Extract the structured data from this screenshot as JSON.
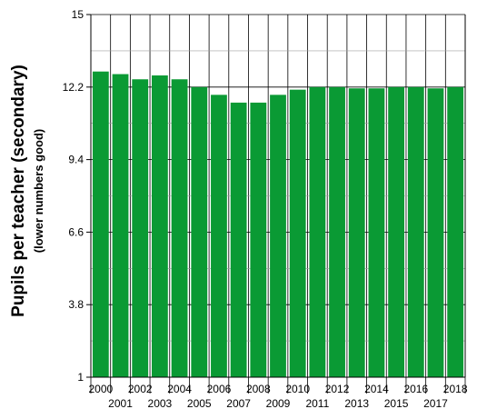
{
  "chart_data": {
    "type": "bar",
    "ylabel": "Pupils per teacher (secondary)",
    "ylabel_sub": "(lower numbers good)",
    "ylim": [
      1,
      15
    ],
    "yticks": [
      "1",
      "3.8",
      "6.6",
      "9.4",
      "12.2",
      "15"
    ],
    "grid": true,
    "bar_color": "#0a9a34",
    "categories": [
      "2000",
      "2001",
      "2002",
      "2003",
      "2004",
      "2005",
      "2006",
      "2007",
      "2008",
      "2009",
      "2010",
      "2011",
      "2012",
      "2013",
      "2014",
      "2015",
      "2016",
      "2017",
      "2018"
    ],
    "values": [
      12.8,
      12.7,
      12.5,
      12.65,
      12.5,
      12.2,
      11.9,
      11.6,
      11.6,
      11.9,
      12.1,
      12.2,
      12.2,
      12.15,
      12.15,
      12.2,
      12.2,
      12.15,
      12.2
    ]
  }
}
